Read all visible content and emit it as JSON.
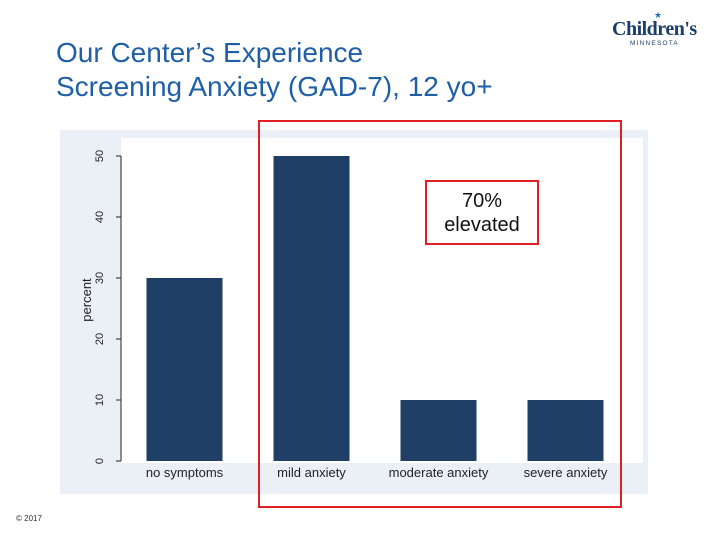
{
  "slide": {
    "title_line1": "Our Center’s Experience",
    "title_line2": "Screening Anxiety (GAD-7), 12 yo+",
    "copyright": "© 2017"
  },
  "logo": {
    "name": "Children's",
    "subtitle": "MINNESOTA"
  },
  "callout": {
    "line1": "70%",
    "line2": "elevated"
  },
  "colors": {
    "title": "#1f5fa6",
    "bar": "#1f3f66",
    "plot_bg": "#ffffff",
    "panel_bg": "#eaf0f5",
    "highlight": "#e02020"
  },
  "chart_data": {
    "type": "bar",
    "categories": [
      "no symptoms",
      "mild anxiety",
      "moderate anxiety",
      "severe anxiety"
    ],
    "values": [
      30,
      50,
      10,
      10
    ],
    "title": "",
    "xlabel": "",
    "ylabel": "percent",
    "ylim": [
      0,
      50
    ],
    "yticks": [
      0,
      10,
      20,
      30,
      40,
      50
    ],
    "grid": false
  }
}
